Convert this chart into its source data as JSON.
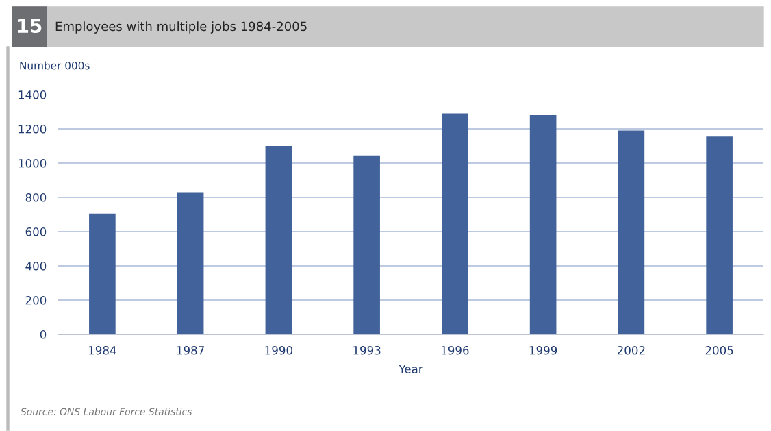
{
  "chart_data": {
    "type": "bar",
    "title": "Employees with multiple jobs 1984-2005",
    "ylabel": "Number 000s",
    "xlabel": "Year",
    "categories": [
      "1984",
      "1987",
      "1990",
      "1993",
      "1996",
      "1999",
      "2002",
      "2005"
    ],
    "values": [
      705,
      830,
      1100,
      1045,
      1290,
      1280,
      1190,
      1155
    ],
    "color": "#41629a",
    "ylim": [
      0,
      1400
    ],
    "yticks": [
      0,
      200,
      400,
      600,
      800,
      1000,
      1200,
      1400
    ],
    "grid": "y",
    "annotations": [
      "15",
      "Source: ONS Labour Force Statistics"
    ]
  }
}
